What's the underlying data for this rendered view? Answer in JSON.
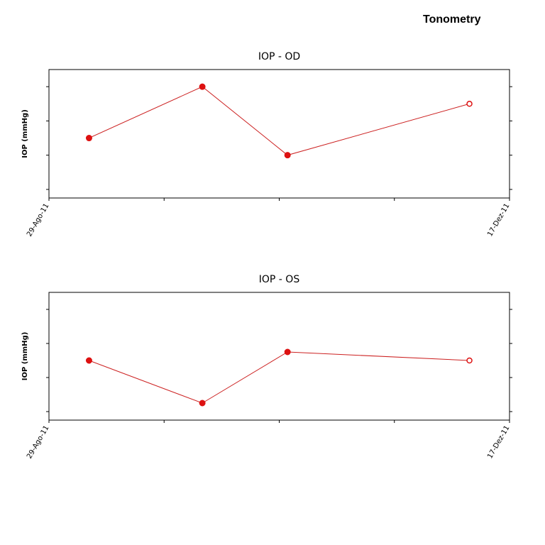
{
  "page": {
    "title": "Tonometry"
  },
  "chart_data": [
    {
      "type": "line",
      "title": "IOP - OD",
      "xlabel": "",
      "ylabel": "IOP (mmHg)",
      "x_tick_labels": [
        "29-Ago-11",
        "17-Dez-11"
      ],
      "x_tick_count": 5,
      "y_tick_count": 4,
      "ylim": [
        0,
        7.5
      ],
      "x": [
        0.087,
        0.333,
        0.518,
        0.913
      ],
      "values": [
        3.5,
        6.5,
        2.5,
        5.5
      ],
      "marker_styles": [
        "filled",
        "filled",
        "filled",
        "hollow"
      ],
      "line_color": "#cc2020",
      "marker_color": "#dd1111",
      "grid": false
    },
    {
      "type": "line",
      "title": "IOP - OS",
      "xlabel": "",
      "ylabel": "IOP (mmHg)",
      "x_tick_labels": [
        "29-Ago-11",
        "17-Dez-11"
      ],
      "x_tick_count": 5,
      "y_tick_count": 4,
      "ylim": [
        0,
        7.5
      ],
      "x": [
        0.087,
        0.333,
        0.518,
        0.913
      ],
      "values": [
        3.5,
        1.0,
        4.0,
        3.5
      ],
      "marker_styles": [
        "filled",
        "filled",
        "filled",
        "hollow"
      ],
      "line_color": "#cc2020",
      "marker_color": "#dd1111",
      "grid": false
    }
  ]
}
